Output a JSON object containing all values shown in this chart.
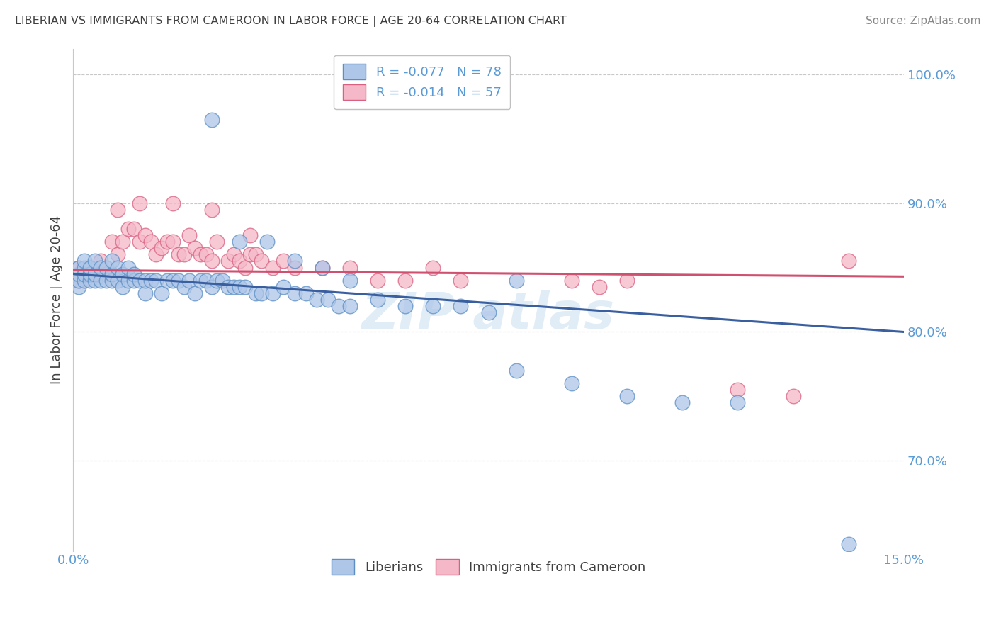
{
  "title": "LIBERIAN VS IMMIGRANTS FROM CAMEROON IN LABOR FORCE | AGE 20-64 CORRELATION CHART",
  "source": "Source: ZipAtlas.com",
  "ylabel": "In Labor Force | Age 20-64",
  "xlim": [
    0.0,
    0.15
  ],
  "ylim": [
    0.63,
    1.02
  ],
  "yticks": [
    0.7,
    0.8,
    0.9,
    1.0
  ],
  "xtick_vals": [
    0.0,
    0.03,
    0.06,
    0.09,
    0.12,
    0.15
  ],
  "legend_label1": "R = -0.077   N = 78",
  "legend_label2": "R = -0.014   N = 57",
  "R1": -0.077,
  "R2": -0.014,
  "color_blue_fill": "#aec6e8",
  "color_blue_edge": "#5b8ec4",
  "color_pink_fill": "#f5b8c8",
  "color_pink_edge": "#d96080",
  "color_line_blue": "#3a5fa0",
  "color_line_pink": "#d05070",
  "color_axis_labels": "#5b9bd5",
  "color_grid": "#c8c8c8",
  "blue_x": [
    0.001,
    0.001,
    0.001,
    0.001,
    0.002,
    0.002,
    0.002,
    0.002,
    0.003,
    0.003,
    0.003,
    0.004,
    0.004,
    0.004,
    0.005,
    0.005,
    0.006,
    0.006,
    0.007,
    0.007,
    0.007,
    0.008,
    0.008,
    0.009,
    0.009,
    0.01,
    0.01,
    0.011,
    0.011,
    0.012,
    0.013,
    0.013,
    0.014,
    0.015,
    0.016,
    0.017,
    0.018,
    0.019,
    0.02,
    0.021,
    0.022,
    0.023,
    0.024,
    0.025,
    0.026,
    0.027,
    0.028,
    0.029,
    0.03,
    0.031,
    0.033,
    0.034,
    0.036,
    0.038,
    0.04,
    0.042,
    0.044,
    0.046,
    0.048,
    0.05,
    0.055,
    0.06,
    0.065,
    0.07,
    0.075,
    0.08,
    0.09,
    0.1,
    0.11,
    0.12,
    0.025,
    0.03,
    0.035,
    0.04,
    0.045,
    0.05,
    0.08,
    0.14
  ],
  "blue_y": [
    0.835,
    0.84,
    0.845,
    0.85,
    0.84,
    0.845,
    0.85,
    0.855,
    0.84,
    0.845,
    0.85,
    0.84,
    0.845,
    0.855,
    0.84,
    0.85,
    0.84,
    0.85,
    0.84,
    0.845,
    0.855,
    0.84,
    0.85,
    0.835,
    0.845,
    0.84,
    0.85,
    0.84,
    0.845,
    0.84,
    0.83,
    0.84,
    0.84,
    0.84,
    0.83,
    0.84,
    0.84,
    0.84,
    0.835,
    0.84,
    0.83,
    0.84,
    0.84,
    0.835,
    0.84,
    0.84,
    0.835,
    0.835,
    0.835,
    0.835,
    0.83,
    0.83,
    0.83,
    0.835,
    0.83,
    0.83,
    0.825,
    0.825,
    0.82,
    0.82,
    0.825,
    0.82,
    0.82,
    0.82,
    0.815,
    0.77,
    0.76,
    0.75,
    0.745,
    0.745,
    0.965,
    0.87,
    0.87,
    0.855,
    0.85,
    0.84,
    0.84,
    0.635
  ],
  "pink_x": [
    0.001,
    0.001,
    0.002,
    0.003,
    0.003,
    0.004,
    0.005,
    0.005,
    0.006,
    0.007,
    0.007,
    0.008,
    0.009,
    0.01,
    0.011,
    0.012,
    0.013,
    0.014,
    0.015,
    0.016,
    0.017,
    0.018,
    0.019,
    0.02,
    0.021,
    0.022,
    0.023,
    0.024,
    0.025,
    0.026,
    0.028,
    0.029,
    0.03,
    0.031,
    0.032,
    0.033,
    0.034,
    0.036,
    0.038,
    0.04,
    0.045,
    0.05,
    0.055,
    0.06,
    0.065,
    0.07,
    0.09,
    0.095,
    0.1,
    0.12,
    0.13,
    0.14,
    0.008,
    0.012,
    0.018,
    0.025,
    0.032
  ],
  "pink_y": [
    0.84,
    0.85,
    0.84,
    0.845,
    0.85,
    0.845,
    0.85,
    0.855,
    0.845,
    0.845,
    0.87,
    0.86,
    0.87,
    0.88,
    0.88,
    0.87,
    0.875,
    0.87,
    0.86,
    0.865,
    0.87,
    0.87,
    0.86,
    0.86,
    0.875,
    0.865,
    0.86,
    0.86,
    0.855,
    0.87,
    0.855,
    0.86,
    0.855,
    0.85,
    0.86,
    0.86,
    0.855,
    0.85,
    0.855,
    0.85,
    0.85,
    0.85,
    0.84,
    0.84,
    0.85,
    0.84,
    0.84,
    0.835,
    0.84,
    0.755,
    0.75,
    0.855,
    0.895,
    0.9,
    0.9,
    0.895,
    0.875
  ],
  "blue_line_x0": 0.0,
  "blue_line_y0": 0.845,
  "blue_line_x1": 0.15,
  "blue_line_y1": 0.8,
  "pink_line_x0": 0.0,
  "pink_line_y0": 0.848,
  "pink_line_x1": 0.15,
  "pink_line_y1": 0.843
}
